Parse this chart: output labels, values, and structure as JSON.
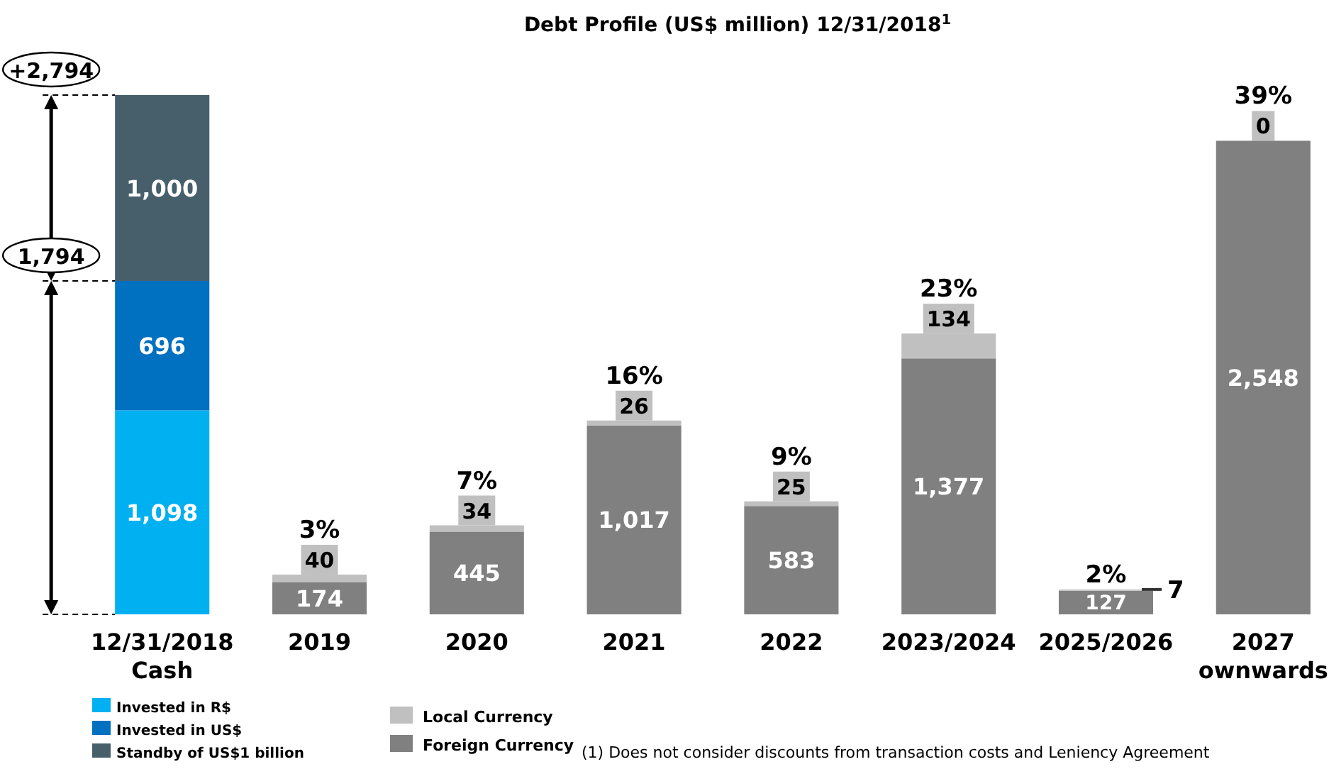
{
  "chart_data": {
    "type": "bar",
    "stacked": true,
    "title": "Debt Profile (US$ million) 12/31/2018$^{1}$",
    "categories": [
      "12/31/2018 Cash",
      "2019",
      "2020",
      "2021",
      "2022",
      "2023/2024",
      "2025/2026",
      "2027 ownwards"
    ],
    "series": [
      {
        "name": "Invested in R$",
        "color": "#00b0f0",
        "values": [
          1098,
          null,
          null,
          null,
          null,
          null,
          null,
          null
        ],
        "value_labels": [
          "1,098",
          null,
          null,
          null,
          null,
          null,
          null,
          null
        ]
      },
      {
        "name": "Invested in US$",
        "color": "#0070c0",
        "values": [
          696,
          null,
          null,
          null,
          null,
          null,
          null,
          null
        ],
        "value_labels": [
          "696",
          null,
          null,
          null,
          null,
          null,
          null,
          null
        ]
      },
      {
        "name": "Standby of US$1 billion",
        "color": "#475f6b",
        "values": [
          1000,
          null,
          null,
          null,
          null,
          null,
          null,
          null
        ],
        "value_labels": [
          "1,000",
          null,
          null,
          null,
          null,
          null,
          null,
          null
        ]
      },
      {
        "name": "Foreign Currency",
        "color": "#808080",
        "values": [
          null,
          174,
          445,
          1017,
          583,
          1377,
          127,
          2548
        ],
        "value_labels": [
          null,
          "174",
          "445",
          "1,017",
          "583",
          "1,377",
          "127",
          "2,548"
        ]
      },
      {
        "name": "Local Currency",
        "color": "#c0c0c0",
        "values": [
          null,
          40,
          34,
          26,
          25,
          134,
          7,
          0
        ],
        "value_labels": [
          null,
          "40",
          "34",
          "26",
          "25",
          "134",
          "7",
          "0"
        ]
      }
    ],
    "legend": "bottom",
    "ref_lines": [
      {
        "axis": "y",
        "value": 2794,
        "label": "+2,794",
        "line_style": "dashed"
      },
      {
        "axis": "y",
        "value": 1794,
        "label": "1,794",
        "line_style": "dashed"
      }
    ],
    "annotations": [
      "3%",
      "7%",
      "16%",
      "9%",
      "23%",
      "2%",
      "39%",
      "(1) Does not consider discounts from transaction costs and Leniency Agreement"
    ]
  }
}
